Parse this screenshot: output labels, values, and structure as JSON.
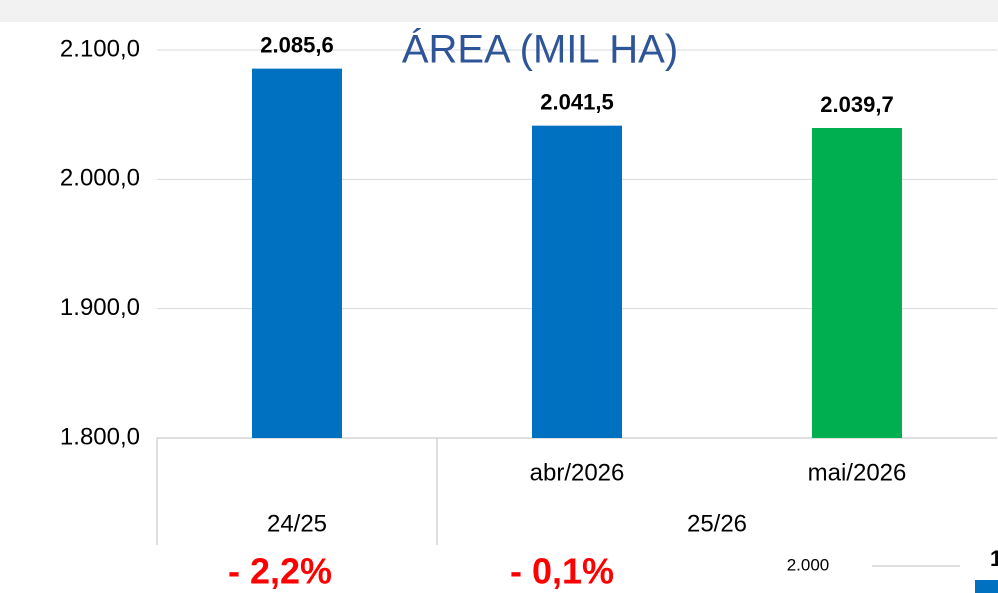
{
  "chart_data": {
    "type": "bar",
    "title": "ÁREA (MIL HA)",
    "categories": [
      null,
      "abr/2026",
      "mai/2026"
    ],
    "groups": [
      {
        "label": "24/25",
        "size": 1
      },
      {
        "label": "25/26",
        "size": 2
      }
    ],
    "values": [
      2085.6,
      2041.5,
      2039.7
    ],
    "value_labels": [
      "2.085,6",
      "2.041,5",
      "2.039,7"
    ],
    "colors": [
      "#0070c0",
      "#0070c0",
      "#00b050"
    ],
    "ylim": [
      1800,
      2100
    ],
    "yticks": [
      {
        "value": 1800,
        "label": "1.800,0"
      },
      {
        "value": 1900,
        "label": "1.900,0"
      },
      {
        "value": 2000,
        "label": "2.000,0"
      },
      {
        "value": 2100,
        "label": "2.100,0"
      }
    ],
    "grid": true,
    "annotations": [
      "- 2,2%",
      "- 0,1%"
    ],
    "fragments": [
      "2.000",
      "1"
    ]
  }
}
